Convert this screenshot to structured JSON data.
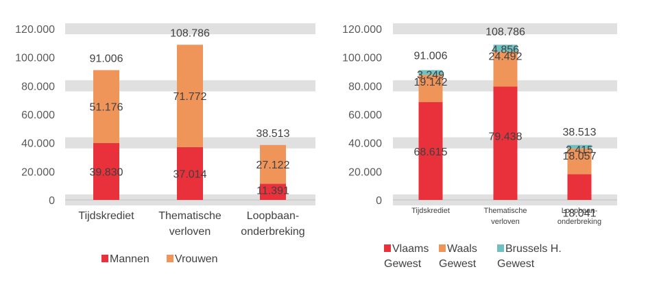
{
  "chart_data": [
    {
      "type": "bar",
      "stacked": true,
      "title": "",
      "xlabel": "",
      "ylabel": "",
      "ylim": [
        0,
        120000
      ],
      "y_ticks": [
        "0",
        "20.000",
        "40.000",
        "60.000",
        "80.000",
        "100.000",
        "120.000"
      ],
      "grid": "alternating bands",
      "categories": [
        [
          "Tijdskrediet"
        ],
        [
          "Thematische",
          "verloven"
        ],
        [
          "Loopbaan-",
          "onderbreking"
        ]
      ],
      "series": [
        {
          "name": "Mannen",
          "color": "#e8313a",
          "values": [
            39830,
            37014,
            11391
          ],
          "labels": [
            "39.830",
            "37.014",
            "11.391"
          ]
        },
        {
          "name": "Vrouwen",
          "color": "#f0955a",
          "values": [
            51176,
            71772,
            27122
          ],
          "labels": [
            "51.176",
            "71.772",
            "27.122"
          ]
        }
      ],
      "totals": [
        91006,
        108786,
        38513
      ],
      "total_labels": [
        "91.006",
        "108.786",
        "38.513"
      ],
      "legend": {
        "placement": "bottom",
        "entries": [
          [
            "Mannen"
          ],
          [
            "Vrouwen"
          ]
        ]
      }
    },
    {
      "type": "bar",
      "stacked": true,
      "title": "",
      "xlabel": "",
      "ylabel": "",
      "ylim": [
        0,
        120000
      ],
      "y_ticks": [
        "0",
        "20.000",
        "40.000",
        "60.000",
        "80.000",
        "100.000",
        "120.000"
      ],
      "grid": "alternating bands",
      "categories": [
        [
          "Tijdskrediet"
        ],
        [
          "Thematische",
          "verloven"
        ],
        [
          "Loopbaan-",
          "onderbreking"
        ]
      ],
      "series": [
        {
          "name": "Vlaams Gewest",
          "color": "#e8313a",
          "values": [
            68615,
            79438,
            18041
          ],
          "labels": [
            "68.615",
            "79.438",
            "18.041"
          ]
        },
        {
          "name": "Waals Gewest",
          "color": "#f0955a",
          "values": [
            19142,
            24492,
            18057
          ],
          "labels": [
            "19.142",
            "24.492",
            "18.057"
          ]
        },
        {
          "name": "Brussels H. Gewest",
          "color": "#6fc0c0",
          "values": [
            3249,
            4856,
            2415
          ],
          "labels": [
            "3.249",
            "4.856",
            "2.415"
          ]
        }
      ],
      "totals": [
        91006,
        108786,
        38513
      ],
      "total_labels": [
        "91.006",
        "108.786",
        "38.513"
      ],
      "legend": {
        "placement": "bottom",
        "entries": [
          [
            "Vlaams",
            "Gewest"
          ],
          [
            "Waals",
            "Gewest"
          ],
          [
            "Brussels H.",
            "Gewest"
          ]
        ]
      }
    }
  ]
}
